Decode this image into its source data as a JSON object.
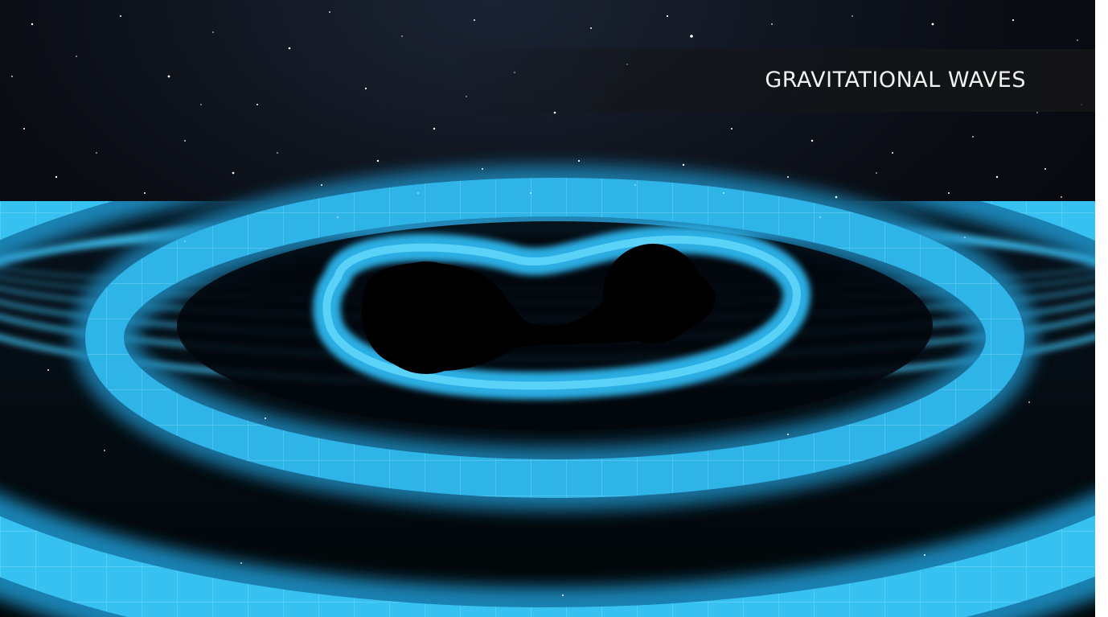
{
  "image": {
    "title": "GRAVITATIONAL WAVES",
    "scene": {
      "subject": "binary-black-hole-merger",
      "background": "starfield",
      "surface": "glowing-spacetime-grid",
      "colors": {
        "background": "#05070c",
        "wave_light": "#5ad8ff",
        "wave_mid": "#1fa6de",
        "wave_deep": "#0a4a78",
        "hole": "#000000",
        "star": "#ffffff",
        "title_text": "#f2f2f2"
      }
    }
  }
}
